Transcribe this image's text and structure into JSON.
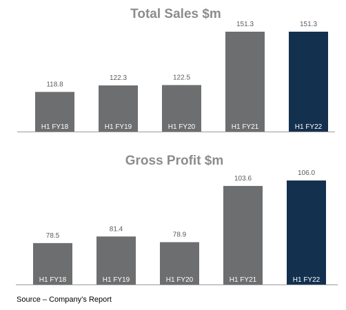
{
  "colors": {
    "bar": "#6d6e70",
    "highlight": "#14304f",
    "axis": "#9a9a9a"
  },
  "chart_data": [
    {
      "type": "bar",
      "title": "Total Sales $m",
      "categories": [
        "H1 FY18",
        "H1 FY19",
        "H1 FY20",
        "H1 FY21",
        "H1 FY22"
      ],
      "values": [
        118.8,
        122.3,
        122.5,
        151.3,
        151.3
      ],
      "value_labels": [
        "118.8",
        "122.3",
        "122.5",
        "151.3",
        "151.3"
      ],
      "highlight_index": 4,
      "ylim": [
        97.4,
        151.3
      ],
      "grid": false,
      "legend": "none"
    },
    {
      "type": "bar",
      "title": "Gross Profit $m",
      "categories": [
        "H1 FY18",
        "H1 FY19",
        "H1 FY20",
        "H1 FY21",
        "H1 FY22"
      ],
      "values": [
        78.5,
        81.4,
        78.9,
        103.6,
        106.0
      ],
      "value_labels": [
        "78.5",
        "81.4",
        "78.9",
        "103.6",
        "106.0"
      ],
      "highlight_index": 4,
      "ylim": [
        60.3,
        106.0
      ],
      "grid": false,
      "legend": "none"
    }
  ],
  "source_note": "Source – Company’s Report"
}
